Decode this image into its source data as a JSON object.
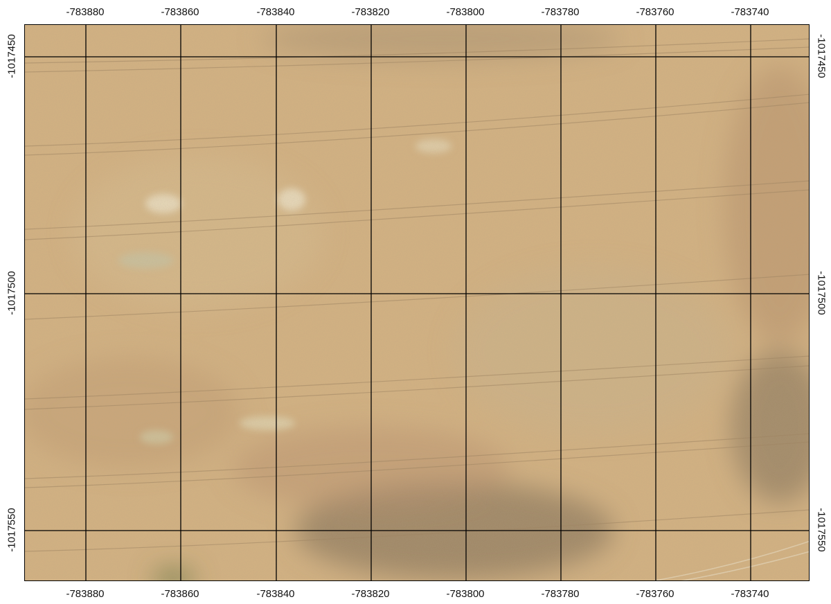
{
  "map": {
    "x_ticks": [
      "-783880",
      "-783860",
      "-783840",
      "-783820",
      "-783800",
      "-783780",
      "-783760",
      "-783740"
    ],
    "y_ticks": [
      "-1017450",
      "-1017500",
      "-1017550"
    ],
    "colors": {
      "field_base": "#d4b282",
      "field_light": "#dcc49a",
      "field_dark": "#a68a66",
      "field_shadow": "#8f7a5e",
      "track": "#9a7f5c",
      "grid": "#000000"
    }
  }
}
